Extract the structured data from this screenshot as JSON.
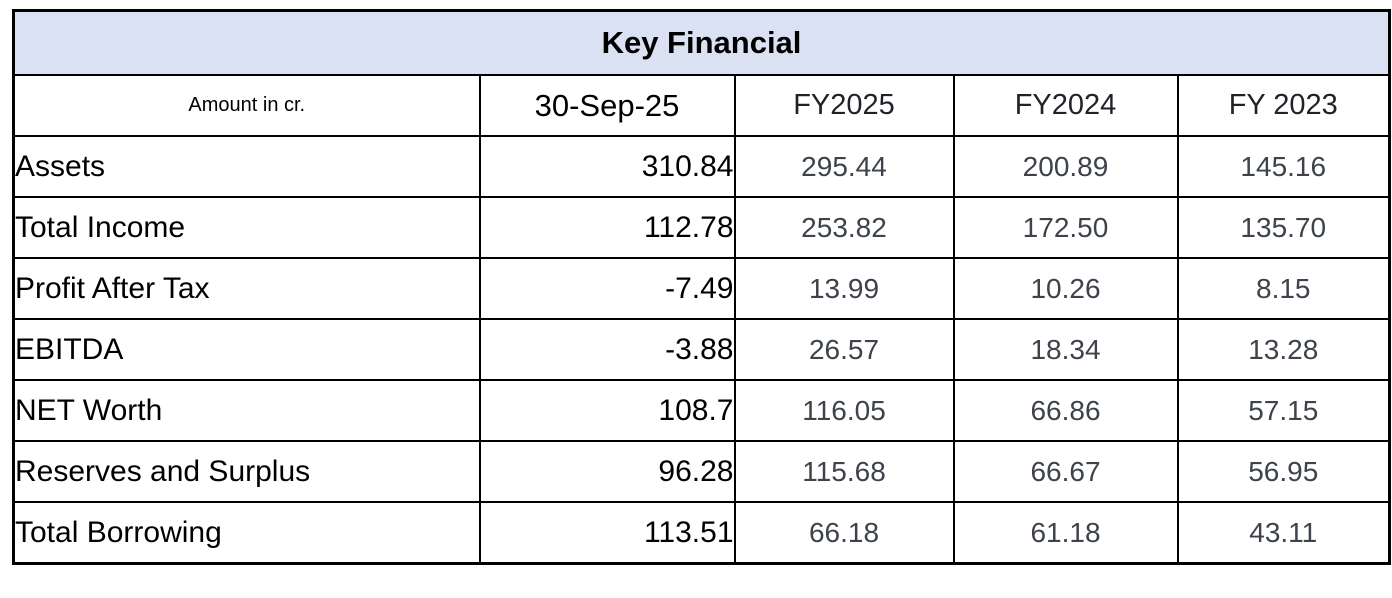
{
  "chart_data": {
    "type": "table",
    "title": "Key Financial",
    "header": {
      "corner": "Amount in cr.",
      "columns": [
        "30-Sep-25",
        "FY2025",
        "FY2024",
        "FY 2023"
      ]
    },
    "rows": [
      {
        "label": "Assets",
        "values": [
          "310.84",
          "295.44",
          "200.89",
          "145.16"
        ]
      },
      {
        "label": "Total Income",
        "values": [
          "112.78",
          "253.82",
          "172.50",
          "135.70"
        ]
      },
      {
        "label": "Profit After Tax",
        "values": [
          "-7.49",
          "13.99",
          "10.26",
          "8.15"
        ]
      },
      {
        "label": "EBITDA",
        "values": [
          "-3.88",
          "26.57",
          "18.34",
          "13.28"
        ]
      },
      {
        "label": "NET Worth",
        "values": [
          "108.7",
          "116.05",
          "66.86",
          "57.15"
        ]
      },
      {
        "label": "Reserves and Surplus",
        "values": [
          "96.28",
          "115.68",
          "66.67",
          "56.95"
        ]
      },
      {
        "label": "Total Borrowing",
        "values": [
          "113.51",
          "66.18",
          "61.18",
          "43.11"
        ]
      }
    ],
    "layout": {
      "grid": true,
      "title_band": "top, spans all columns",
      "first_value_column_alignment": "right",
      "fy_columns_alignment": "center"
    },
    "colors": {
      "title_background": "#d9e1f2",
      "border": "#000000",
      "primary_text": "#000000",
      "fy_text": "#3d424b"
    }
  }
}
